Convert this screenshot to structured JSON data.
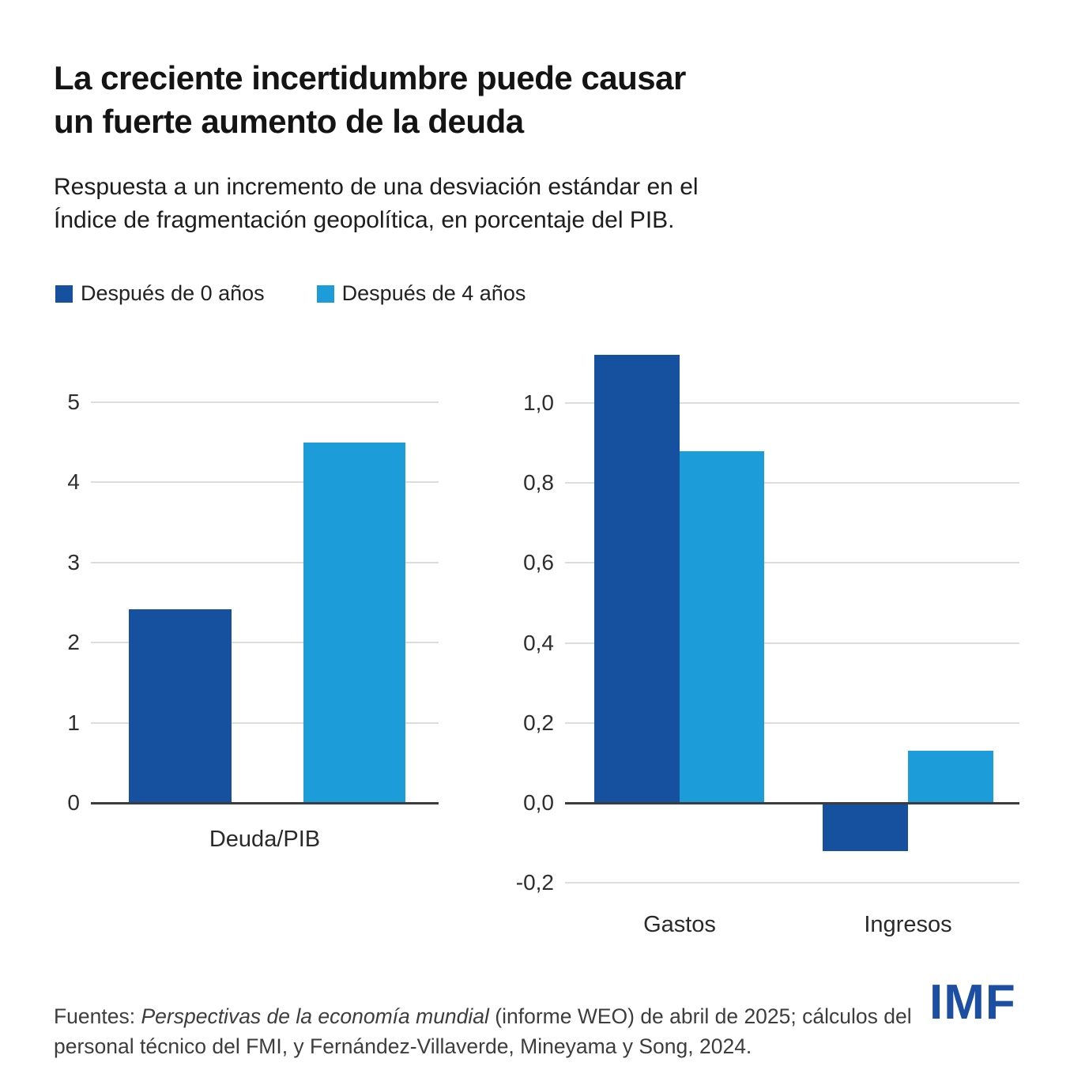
{
  "title": {
    "line1": "La creciente incertidumbre puede causar",
    "line2": "un fuerte aumento de la deuda"
  },
  "subtitle": {
    "line1": "Respuesta a un incremento de una desviación estándar en el",
    "line2": "Índice de fragmentación geopolítica, en porcentaje del PIB."
  },
  "legend": {
    "items": [
      {
        "label": "Después de 0 años",
        "color": "#15519E"
      },
      {
        "label": "Después de 4 años",
        "color": "#1C9CD9"
      }
    ],
    "position": "top-left"
  },
  "chart_data": [
    {
      "type": "bar",
      "title": "",
      "xlabel": "",
      "ylabel": "",
      "categories": [
        "Deuda/PIB"
      ],
      "series": [
        {
          "name": "Después de 0 años",
          "color": "#15519E",
          "values": [
            2.42
          ]
        },
        {
          "name": "Después de 4 años",
          "color": "#1C9CD9",
          "values": [
            4.5
          ]
        }
      ],
      "yticks": [
        {
          "value": 5,
          "label": "5"
        },
        {
          "value": 4,
          "label": "4"
        },
        {
          "value": 3,
          "label": "3"
        },
        {
          "value": 2,
          "label": "2"
        },
        {
          "value": 1,
          "label": "1"
        },
        {
          "value": 0,
          "label": "0"
        }
      ],
      "ylim": [
        0,
        5.3
      ],
      "grid": true
    },
    {
      "type": "bar",
      "title": "",
      "xlabel": "",
      "ylabel": "",
      "categories": [
        "Gastos",
        "Ingresos"
      ],
      "series": [
        {
          "name": "Después de 0 años",
          "color": "#15519E",
          "values": [
            1.12,
            -0.12
          ]
        },
        {
          "name": "Después de 4 años",
          "color": "#1C9CD9",
          "values": [
            0.88,
            0.13
          ]
        }
      ],
      "yticks": [
        {
          "value": 1.0,
          "label": "1,0"
        },
        {
          "value": 0.8,
          "label": "0,8"
        },
        {
          "value": 0.6,
          "label": "0,6"
        },
        {
          "value": 0.4,
          "label": "0,4"
        },
        {
          "value": 0.2,
          "label": "0,2"
        },
        {
          "value": 0.0,
          "label": "0,0"
        },
        {
          "value": -0.2,
          "label": "-0,2"
        }
      ],
      "ylim": [
        -0.27,
        1.13
      ],
      "grid": true
    }
  ],
  "footer": {
    "source_prefix": "Fuentes: ",
    "source_italic": "Perspectivas de la economía mundial",
    "source_rest": " (informe WEO) de abril de 2025; cálculos del personal técnico del FMI, y Fernández-Villaverde, Mineyama y Song, 2024.",
    "logo": "IMF"
  },
  "colors": {
    "dark_blue": "#15519E",
    "light_blue": "#1C9CD9",
    "grid": "#DCDCDC",
    "axis": "#3C3C3C",
    "logo_blue": "#1C4FA1"
  }
}
